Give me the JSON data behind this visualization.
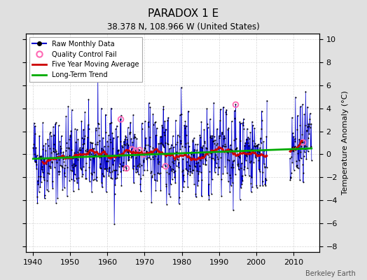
{
  "title": "PARADOX 1 E",
  "subtitle": "38.378 N, 108.966 W (United States)",
  "ylabel": "Temperature Anomaly (°C)",
  "watermark": "Berkeley Earth",
  "xlim": [
    1938,
    2017
  ],
  "ylim": [
    -8.5,
    10.5
  ],
  "yticks": [
    -8,
    -6,
    -4,
    -2,
    0,
    2,
    4,
    6,
    8,
    10
  ],
  "xticks": [
    1940,
    1950,
    1960,
    1970,
    1980,
    1990,
    2000,
    2010
  ],
  "bg_color": "#e0e0e0",
  "plot_bg_color": "#ffffff",
  "raw_line_color": "#0000cc",
  "raw_marker_color": "#000000",
  "qc_fail_color": "#ff69b4",
  "moving_avg_color": "#cc0000",
  "trend_color": "#00aa00",
  "seed": 42,
  "n_years": 75,
  "start_year": 1940,
  "gap_start": 2003,
  "gap_end": 2009
}
